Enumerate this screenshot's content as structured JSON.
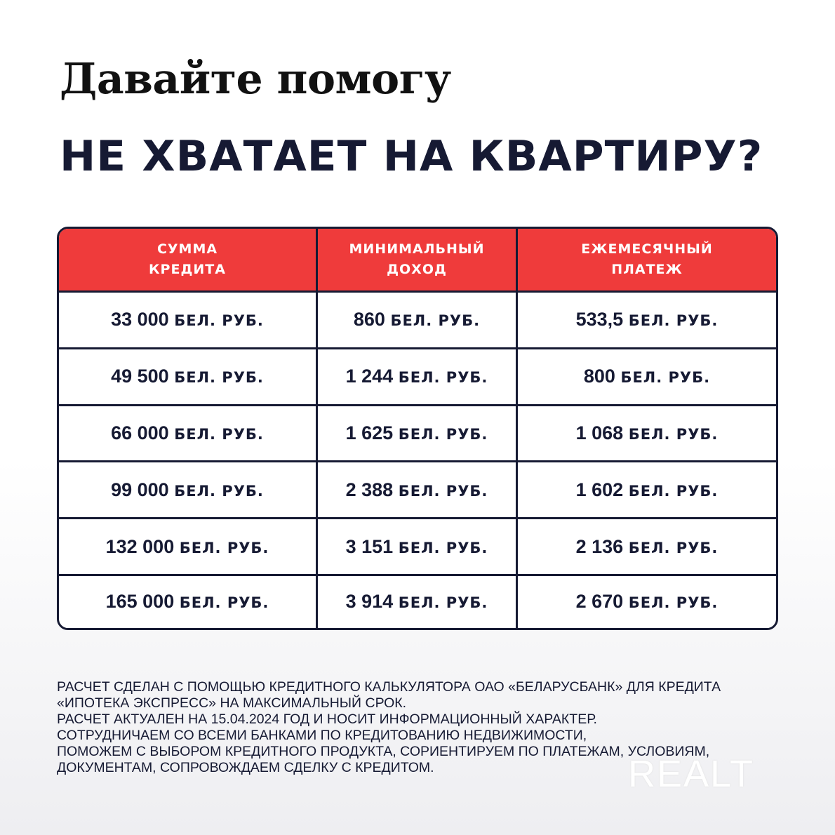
{
  "header": {
    "title": "Давайте помогу",
    "subtitle": "НЕ ХВАТАЕТ НА КВАРТИРУ?"
  },
  "table": {
    "columns": [
      [
        "СУММА",
        "КРЕДИТА"
      ],
      [
        "МИНИМАЛЬНЫЙ",
        "ДОХОД"
      ],
      [
        "ЕЖЕМЕСЯЧНЫЙ",
        "ПЛАТЕЖ"
      ]
    ],
    "unit": "БЕЛ. РУБ.",
    "rows": [
      [
        "33 000",
        "860",
        "533,5"
      ],
      [
        "49 500",
        "1 244",
        "800"
      ],
      [
        "66 000",
        "1 625",
        "1 068"
      ],
      [
        "99 000",
        "2 388",
        "1 602"
      ],
      [
        "132 000",
        "3 151",
        "2 136"
      ],
      [
        "165 000",
        "3 914",
        "2 670"
      ]
    ]
  },
  "footer": {
    "lines": [
      "Расчет сделан с помощью кредитного калькулятора ОАО «Беларусбанк» для кредита",
      "«Ипотека Экспресс» на максимальный срок.",
      "Расчет актуален на 15.04.2024 год и носит информационный характер.",
      "Сотрудничаем со всеми банками по кредитованию недвижимости,",
      "поможем с выбором кредитного продукта, сориентируем по платежам, условиям,",
      "документам, сопровождаем сделку с кредитом."
    ]
  },
  "watermark": "REALT",
  "colors": {
    "accent": "#ef3b3b",
    "navy": "#161a33"
  }
}
